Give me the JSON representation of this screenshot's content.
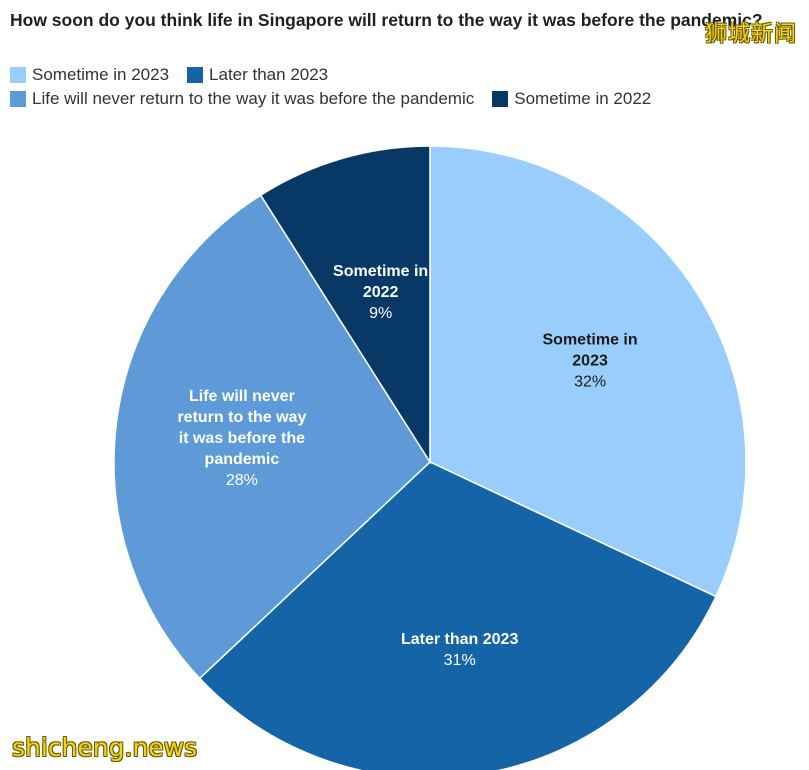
{
  "chart_data": {
    "type": "pie",
    "title": "How soon do you think life in Singapore will return to the way it was before the pandemic?",
    "legend_placement": "top-left",
    "slices": [
      {
        "label": "Sometime in 2023",
        "value": 32,
        "display": "32%",
        "color": "#99cdfb",
        "text_color": "#1a1a1a",
        "label_lines": [
          "Sometime in",
          "2023"
        ]
      },
      {
        "label": "Later than 2023",
        "value": 31,
        "display": "31%",
        "color": "#1664a8",
        "text_color": "#ffffff",
        "label_lines": [
          "Later than 2023"
        ]
      },
      {
        "label": "Life will never return to the way it was before the pandemic",
        "value": 28,
        "display": "28%",
        "color": "#5e9ad8",
        "text_color": "#ffffff",
        "label_lines": [
          "Life will never",
          "return to the way",
          "it was before the",
          "pandemic"
        ]
      },
      {
        "label": "Sometime in 2022",
        "value": 9,
        "display": "9%",
        "color": "#073866",
        "text_color": "#ffffff",
        "label_lines": [
          "Sometime in",
          "2022"
        ]
      }
    ]
  },
  "legend": {
    "rows": [
      [
        {
          "label": "Sometime in 2023",
          "color": "#99cdfb"
        },
        {
          "label": "Later than 2023",
          "color": "#1664a8"
        }
      ],
      [
        {
          "label": "Life will never return to the way it was before the pandemic",
          "color": "#5e9ad8"
        },
        {
          "label": "Sometime in 2022",
          "color": "#073866"
        }
      ]
    ]
  },
  "watermarks": {
    "top": "狮城新闻",
    "bottom": "shicheng.news"
  }
}
